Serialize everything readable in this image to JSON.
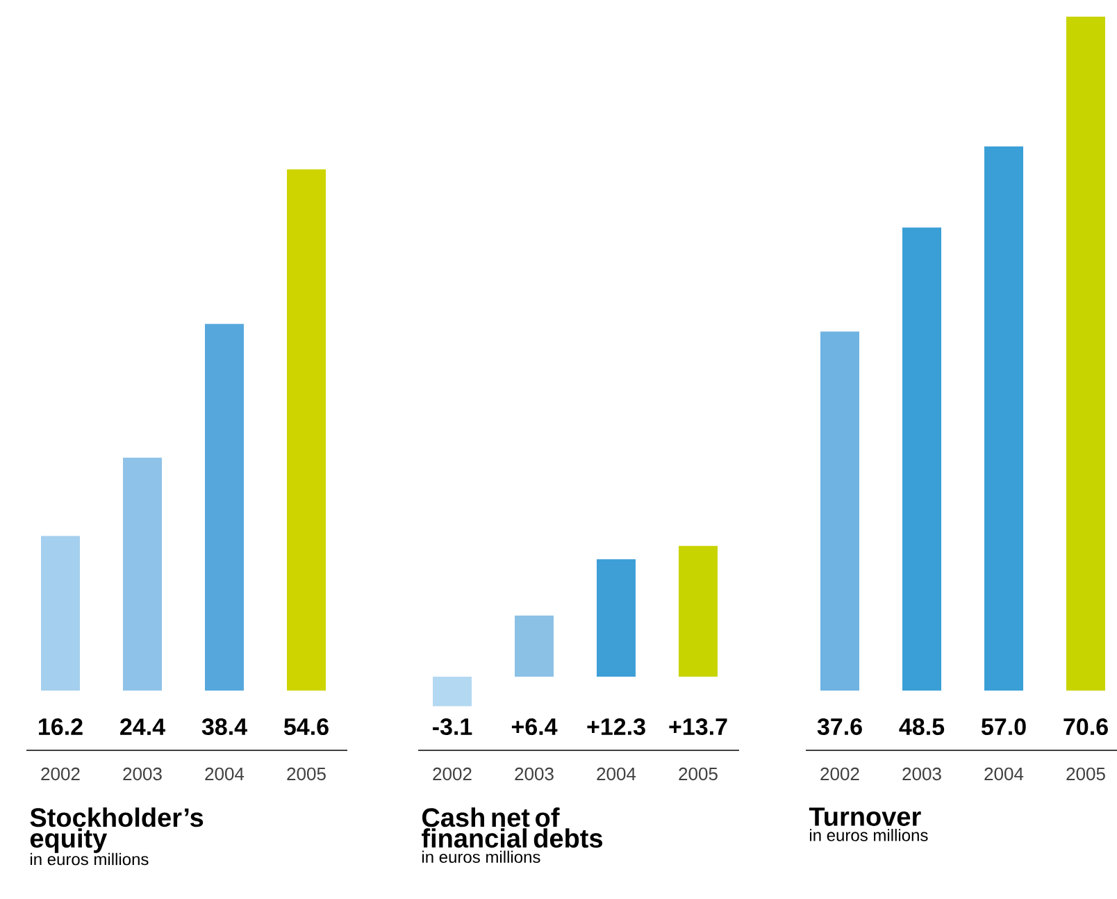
{
  "chart_data": [
    {
      "type": "bar",
      "title": "Stockholder’s equity",
      "subtitle": "in euros millions",
      "categories": [
        "2002",
        "2003",
        "2004",
        "2005"
      ],
      "values": [
        16.2,
        24.4,
        38.4,
        54.6
      ],
      "value_labels": [
        "16.2",
        "24.4",
        "38.4",
        "54.6"
      ],
      "colors": [
        "#a5cfee",
        "#8fc2e8",
        "#56a8dc",
        "#cdd400"
      ]
    },
    {
      "type": "bar",
      "title": "Cash net of financial debts",
      "subtitle": "in euros millions",
      "categories": [
        "2002",
        "2003",
        "2004",
        "2005"
      ],
      "values": [
        -3.1,
        6.4,
        12.3,
        13.7
      ],
      "value_labels": [
        "-3.1",
        "+6.4",
        "+12.3",
        "+13.7"
      ],
      "colors": [
        "#b3d8f2",
        "#8cc1e6",
        "#3d9fd6",
        "#c8d400"
      ]
    },
    {
      "type": "bar",
      "title": "Turnover",
      "subtitle": "in euros millions",
      "categories": [
        "2002",
        "2003",
        "2004",
        "2005"
      ],
      "values": [
        37.6,
        48.5,
        57.0,
        70.6
      ],
      "value_labels": [
        "37.6",
        "48.5",
        "57.0",
        "70.6"
      ],
      "colors": [
        "#6fb3e2",
        "#3a9fd6",
        "#3a9fd6",
        "#c8d400"
      ]
    }
  ]
}
